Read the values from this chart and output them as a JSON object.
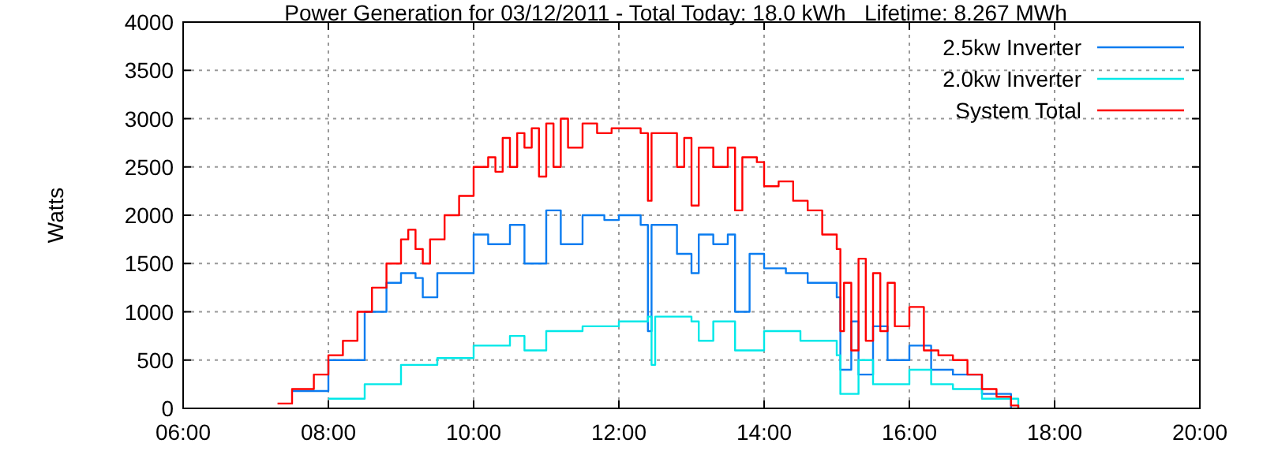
{
  "chart_data": {
    "type": "step",
    "title": "Power Generation for 03/12/2011 - Total Today: 18.0 kWh   Lifetime: 8.267 MWh",
    "ylabel": "Watts",
    "xlim": [
      6,
      20
    ],
    "xticks": [
      {
        "value": 6,
        "label": "06:00"
      },
      {
        "value": 8,
        "label": "08:00"
      },
      {
        "value": 10,
        "label": "10:00"
      },
      {
        "value": 12,
        "label": "12:00"
      },
      {
        "value": 14,
        "label": "14:00"
      },
      {
        "value": 16,
        "label": "16:00"
      },
      {
        "value": 18,
        "label": "18:00"
      },
      {
        "value": 20,
        "label": "20:00"
      }
    ],
    "ylim": [
      0,
      4000
    ],
    "yticks": [
      0,
      500,
      1000,
      1500,
      2000,
      2500,
      3000,
      3500,
      4000
    ],
    "grid": true,
    "legend": "top right",
    "series": [
      {
        "name": "2.5kw Inverter",
        "color": "#0a7cf0",
        "x": [
          7.5,
          8.0,
          8.5,
          8.8,
          9.0,
          9.2,
          9.3,
          9.5,
          10.0,
          10.2,
          10.5,
          10.7,
          11.0,
          11.2,
          11.5,
          11.8,
          12.0,
          12.3,
          12.4,
          12.45,
          12.8,
          13.0,
          13.1,
          13.3,
          13.5,
          13.6,
          13.8,
          14.0,
          14.3,
          14.6,
          15.0,
          15.05,
          15.2,
          15.3,
          15.5,
          15.7,
          16.0,
          16.3,
          16.6,
          17.0,
          17.4
        ],
        "values": [
          180,
          500,
          1000,
          1300,
          1400,
          1350,
          1150,
          1400,
          1800,
          1700,
          1900,
          1500,
          2050,
          1700,
          2000,
          1950,
          2000,
          1900,
          800,
          1900,
          1600,
          1400,
          1800,
          1700,
          1800,
          1000,
          1600,
          1450,
          1400,
          1300,
          1150,
          400,
          900,
          350,
          850,
          500,
          650,
          400,
          350,
          150,
          0
        ]
      },
      {
        "name": "2.0kw Inverter",
        "color": "#00e8e8",
        "x": [
          8.0,
          8.5,
          9.0,
          9.3,
          9.5,
          10.0,
          10.5,
          10.7,
          11.0,
          11.5,
          12.0,
          12.4,
          12.45,
          12.5,
          13.0,
          13.1,
          13.3,
          13.6,
          14.0,
          14.5,
          15.0,
          15.05,
          15.3,
          15.5,
          16.0,
          16.3,
          16.6,
          17.0,
          17.5
        ],
        "values": [
          100,
          250,
          450,
          450,
          520,
          650,
          750,
          600,
          800,
          850,
          900,
          950,
          450,
          950,
          900,
          700,
          900,
          600,
          800,
          700,
          550,
          150,
          500,
          250,
          400,
          250,
          200,
          100,
          0
        ]
      },
      {
        "name": "System Total",
        "color": "#ff0000",
        "x": [
          7.3,
          7.5,
          7.8,
          8.0,
          8.2,
          8.4,
          8.6,
          8.8,
          9.0,
          9.1,
          9.2,
          9.3,
          9.4,
          9.6,
          9.8,
          10.0,
          10.2,
          10.3,
          10.4,
          10.5,
          10.6,
          10.7,
          10.8,
          10.9,
          11.0,
          11.1,
          11.2,
          11.3,
          11.5,
          11.7,
          11.9,
          12.1,
          12.3,
          12.4,
          12.45,
          12.7,
          12.8,
          12.9,
          13.0,
          13.1,
          13.3,
          13.5,
          13.6,
          13.7,
          13.9,
          14.0,
          14.2,
          14.4,
          14.6,
          14.8,
          15.0,
          15.05,
          15.1,
          15.2,
          15.3,
          15.4,
          15.5,
          15.6,
          15.7,
          15.8,
          16.0,
          16.2,
          16.4,
          16.6,
          16.8,
          17.0,
          17.2,
          17.4,
          17.5
        ],
        "values": [
          50,
          200,
          350,
          550,
          700,
          1000,
          1250,
          1500,
          1750,
          1850,
          1650,
          1500,
          1750,
          2000,
          2200,
          2500,
          2600,
          2450,
          2800,
          2500,
          2850,
          2700,
          2900,
          2400,
          2950,
          2500,
          3000,
          2700,
          2950,
          2850,
          2900,
          2900,
          2850,
          2150,
          2850,
          2850,
          2500,
          2800,
          2100,
          2700,
          2500,
          2700,
          2050,
          2600,
          2550,
          2300,
          2350,
          2150,
          2050,
          1800,
          1650,
          800,
          1300,
          600,
          1550,
          700,
          1400,
          800,
          1300,
          850,
          1050,
          600,
          550,
          500,
          350,
          200,
          120,
          30,
          0
        ]
      }
    ]
  }
}
